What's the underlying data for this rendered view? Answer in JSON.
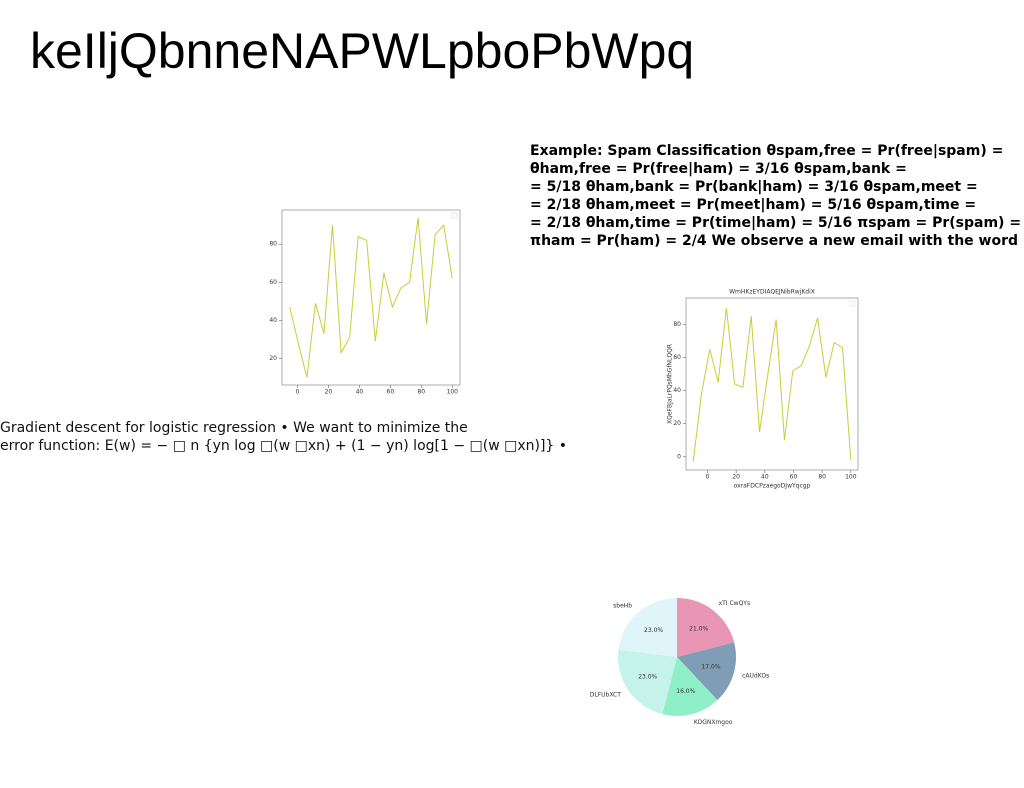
{
  "title": "keIljQbnneNAPWLpboPbWpq",
  "text_left": [
    "Gradient descent for logistic regression • We want to minimize the",
    "error function: E(w) = − □ n {yn log □(w □xn) + (1 − yn) log[1 − □(w □xn)]} •"
  ],
  "text_right": [
    "Example: Spam Classification θspam,free = Pr(free|spam) =",
    "θham,free = Pr(free|ham) = 3/16 θspam,bank =",
    "= 5/18 θham,bank = Pr(bank|ham) = 3/16 θspam,meet =",
    "= 2/18 θham,meet = Pr(meet|ham) = 5/16 θspam,time =",
    "= 2/18 θham,time = Pr(time|ham) = 5/16 πspam = Pr(spam) =",
    "πham = Pr(ham) = 2/4 We observe a new email with the word"
  ],
  "chart_data": [
    {
      "type": "line",
      "color": "#c8cc3a",
      "x": [
        -5,
        0.5,
        6.1,
        11.6,
        17.1,
        22.6,
        28.2,
        33.7,
        39.2,
        44.7,
        50.3,
        55.8,
        61.3,
        66.8,
        72.4,
        77.9,
        83.4,
        88.9,
        94.5,
        100
      ],
      "values": [
        47,
        28,
        10,
        49,
        33,
        90,
        23,
        31,
        84,
        82,
        29,
        65,
        47,
        57,
        60,
        94,
        38,
        85,
        90,
        62
      ],
      "xlim": [
        -10,
        105
      ],
      "xticks": [
        0,
        20,
        40,
        60,
        80,
        100
      ],
      "ylim": [
        6,
        98
      ],
      "yticks": [
        20,
        40,
        60,
        80
      ]
    },
    {
      "type": "line",
      "color": "#c8cc3a",
      "title": "WmHKzEYDIAQEJNibRwjKdiX",
      "xlabel": "oxraFDCPzaegoDJwYqcgp",
      "ylabel": "XQeFBJaLrPQsMhGfNLQQR",
      "x": [
        -10,
        -4.2,
        1.6,
        7.4,
        13.2,
        18.9,
        24.7,
        30.5,
        36.3,
        42.1,
        47.9,
        53.7,
        59.5,
        65.3,
        71.1,
        76.8,
        82.6,
        88.4,
        94.2,
        100
      ],
      "values": [
        -3,
        38,
        65,
        45,
        90,
        44,
        42,
        85,
        15,
        50,
        83,
        10,
        52,
        55,
        67,
        84,
        48,
        69,
        66,
        -2
      ],
      "xlim": [
        -15,
        105
      ],
      "xticks": [
        0,
        20,
        40,
        60,
        80,
        100
      ],
      "ylim": [
        -8,
        96
      ],
      "yticks": [
        0,
        20,
        40,
        60,
        80
      ]
    },
    {
      "type": "pie",
      "categories": [
        "xTI CwQYs",
        "cAUdKOs",
        "KOGNXmgoo",
        "DLFUbXCT",
        "sbeHb"
      ],
      "values": [
        21,
        17,
        16,
        23,
        23
      ],
      "value_labels": [
        "21.0%",
        "17.0%",
        "16.0%",
        "23.0%",
        "23.0%"
      ],
      "colors": [
        "#e896b4",
        "#7f9db5",
        "#8ff0c8",
        "#c5f3ec",
        "#dff5fa"
      ]
    }
  ]
}
